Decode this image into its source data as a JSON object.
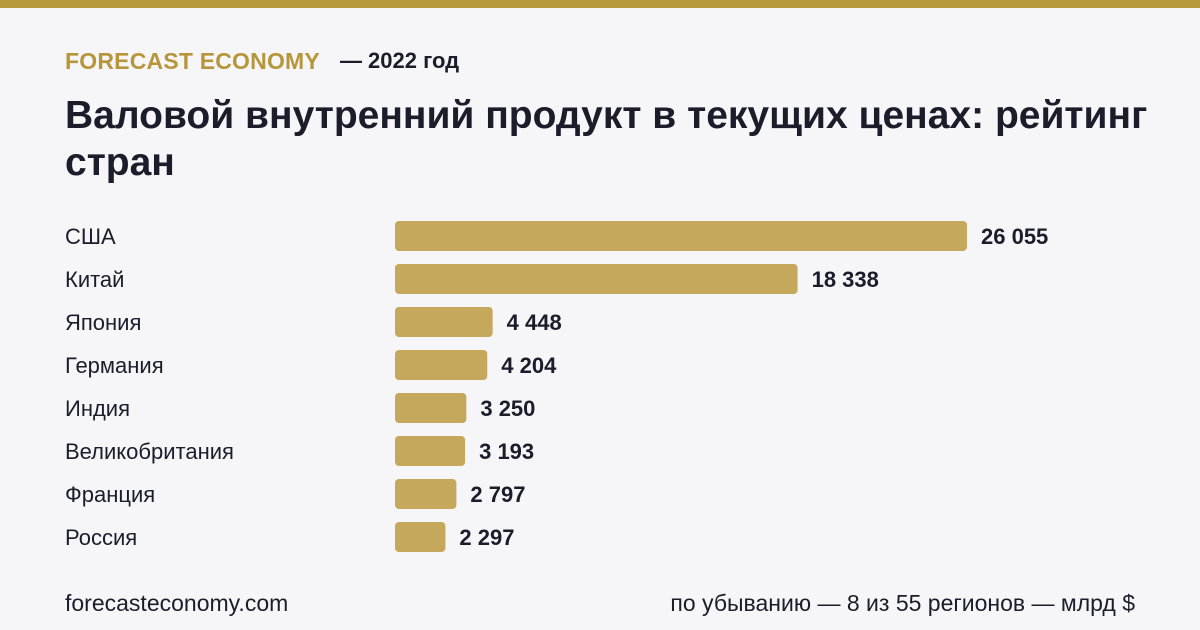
{
  "header": {
    "brand": "FORECAST ECONOMY",
    "year_label": "— 2022 год"
  },
  "title": "Валовой внутренний продукт в текущих ценах: рейтинг стран",
  "footer": {
    "site": "forecasteconomy.com",
    "note": "по убыванию — 8 из 55 регионов — млрд $"
  },
  "colors": {
    "bar": "#c6a85c",
    "accent": "#b7963b",
    "stripe": "#b89a3e",
    "text": "#1c1c2a",
    "background": "#f6f6f9"
  },
  "chart_data": {
    "type": "bar",
    "orientation": "horizontal",
    "categories": [
      "США",
      "Китай",
      "Япония",
      "Германия",
      "Индия",
      "Великобритания",
      "Франция",
      "Россия"
    ],
    "values": [
      26055,
      18338,
      4448,
      4204,
      3250,
      3193,
      2797,
      2297
    ],
    "value_labels": [
      "26 055",
      "18 338",
      "4 448",
      "4 204",
      "3 250",
      "3 193",
      "2 797",
      "2 297"
    ],
    "xlim": [
      0,
      26055
    ],
    "grid": false,
    "legend": "none"
  }
}
